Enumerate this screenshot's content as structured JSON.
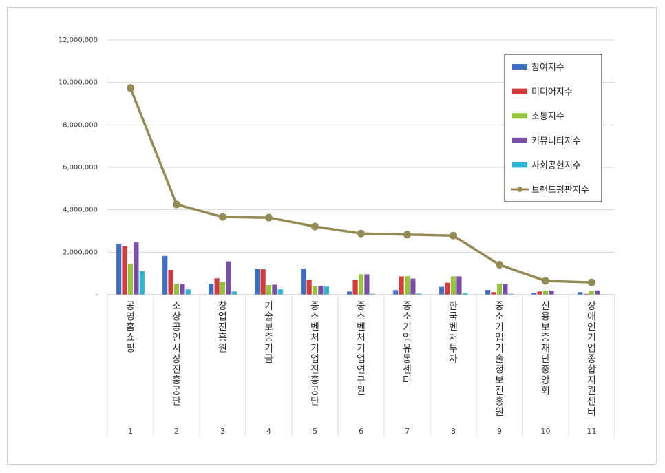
{
  "chart_data": {
    "type": "bar",
    "categories": [
      "1",
      "2",
      "3",
      "4",
      "5",
      "6",
      "7",
      "8",
      "9",
      "10",
      "11"
    ],
    "category_names": [
      "공영홈쇼핑",
      "소상공인시장진흥공단",
      "창업진흥원",
      "기술보증기금",
      "중소벤처기업진흥공단",
      "중소벤처기업연구원",
      "중소기업유통센터",
      "한국벤처투자",
      "중소기업기술정보진흥원",
      "신용보증재단중앙회",
      "장애인기업종합지원센터"
    ],
    "y_ticks": [
      "-",
      "2,000,000",
      "4,000,000",
      "6,000,000",
      "8,000,000",
      "10,000,000",
      "12,000,000"
    ],
    "ylim": [
      0,
      12000000
    ],
    "grid": true,
    "legend_position": "top-right",
    "series": [
      {
        "name": "참여지수",
        "kind": "bar",
        "color": "#3a6fc4",
        "values": [
          2400000,
          1820000,
          520000,
          1200000,
          1230000,
          150000,
          220000,
          370000,
          220000,
          80000,
          120000
        ]
      },
      {
        "name": "미디어지수",
        "kind": "bar",
        "color": "#d43a3a",
        "values": [
          2280000,
          1170000,
          770000,
          1200000,
          700000,
          700000,
          860000,
          560000,
          120000,
          150000,
          40000
        ]
      },
      {
        "name": "소통지수",
        "kind": "bar",
        "color": "#96c43c",
        "values": [
          1450000,
          500000,
          590000,
          450000,
          410000,
          960000,
          870000,
          860000,
          510000,
          200000,
          190000
        ]
      },
      {
        "name": "커뮤니티지수",
        "kind": "bar",
        "color": "#7a4ea8",
        "values": [
          2460000,
          490000,
          1570000,
          470000,
          420000,
          960000,
          760000,
          860000,
          490000,
          190000,
          200000
        ]
      },
      {
        "name": "사회공헌지수",
        "kind": "bar",
        "color": "#2eb3d1",
        "values": [
          1110000,
          250000,
          150000,
          250000,
          380000,
          40000,
          50000,
          60000,
          40000,
          20000,
          20000
        ]
      },
      {
        "name": "브랜드평판지수",
        "kind": "line",
        "color": "#948a54",
        "values": [
          9740000,
          4250000,
          3660000,
          3630000,
          3210000,
          2880000,
          2830000,
          2780000,
          1410000,
          650000,
          580000
        ]
      }
    ]
  }
}
